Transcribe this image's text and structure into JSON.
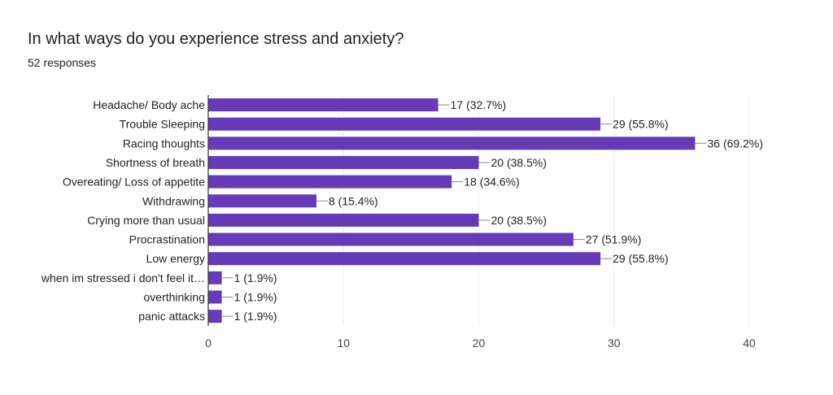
{
  "title": "In what ways do you experience stress and anxiety?",
  "responses": "52 responses",
  "chart_data": {
    "type": "bar",
    "orientation": "horizontal",
    "title": "In what ways do you experience stress and anxiety?",
    "categories": [
      "Headache/ Body ache",
      "Trouble Sleeping",
      "Racing thoughts",
      "Shortness of breath",
      "Overeating/ Loss of appetite",
      "Withdrawing",
      "Crying more than usual",
      "Procrastination",
      "Low energy",
      "when im stressed i don't feel it…",
      "overthinking",
      "panic attacks"
    ],
    "values": [
      17,
      29,
      36,
      20,
      18,
      8,
      20,
      27,
      29,
      1,
      1,
      1
    ],
    "data_labels": [
      "17 (32.7%)",
      "29 (55.8%)",
      "36 (69.2%)",
      "20 (38.5%)",
      "18 (34.6%)",
      "8 (15.4%)",
      "20 (38.5%)",
      "27 (51.9%)",
      "29 (55.8%)",
      "1 (1.9%)",
      "1 (1.9%)",
      "1 (1.9%)"
    ],
    "xlim": [
      0,
      40
    ],
    "xticks": [
      "0",
      "10",
      "20",
      "30",
      "40"
    ],
    "grid": true,
    "bar_color": "#673ab7"
  }
}
